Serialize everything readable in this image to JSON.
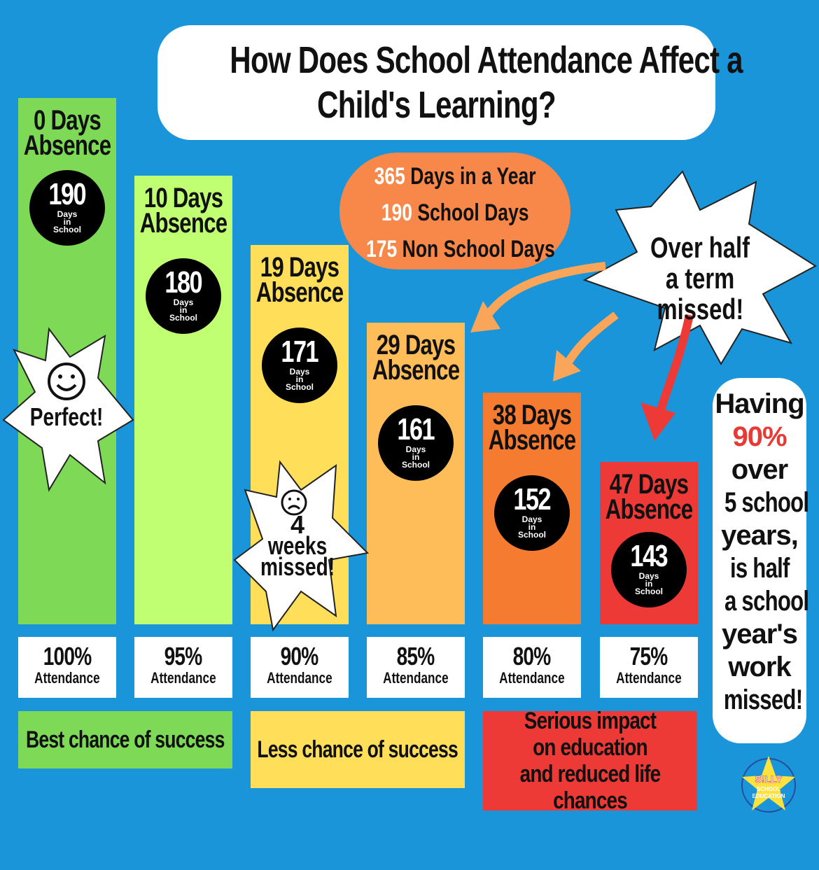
{
  "title": [
    "How Does School Attendance Affect a",
    "Child's Learning?"
  ],
  "year_info": [
    {
      "num": "365",
      "text": "Days in a Year"
    },
    {
      "num": "190",
      "text": "School Days"
    },
    {
      "num": "175",
      "text": "Non School Days"
    }
  ],
  "callouts": {
    "perfect": "Perfect!",
    "weeks": [
      "4",
      "weeks",
      "missed!"
    ],
    "half_term": [
      "Over half",
      "a term",
      "missed!"
    ]
  },
  "circle_sub": [
    "Days",
    "in",
    "School"
  ],
  "attendance_label": "Attendance",
  "side_note": [
    "Having",
    "90%",
    "over",
    "5 school",
    "years,",
    "is half",
    "a school",
    "year's",
    "work",
    "missed!"
  ],
  "outcomes": [
    {
      "text": "Best chance of success",
      "color": "#7ed957"
    },
    {
      "text": "Less chance of success",
      "color": "#ffde59"
    },
    {
      "text": "Serious impact on education and reduced life chances",
      "color": "#ee3a36"
    }
  ],
  "logo": "Silly School Education",
  "colors": {
    "background": "#1a95d9",
    "bars": [
      "#7ed957",
      "#c1ff72",
      "#ffde59",
      "#ffbd59",
      "#f47b30",
      "#ee3a36"
    ]
  },
  "chart_data": {
    "type": "bar",
    "categories": [
      "100% Attendance",
      "95% Attendance",
      "90% Attendance",
      "85% Attendance",
      "80% Attendance",
      "75% Attendance"
    ],
    "series": [
      {
        "name": "Days Absence",
        "values": [
          0,
          10,
          19,
          29,
          38,
          47
        ]
      },
      {
        "name": "Days in School",
        "values": [
          190,
          180,
          171,
          161,
          152,
          143
        ]
      }
    ],
    "attendance": [
      "100%",
      "95%",
      "90%",
      "85%",
      "80%",
      "75%"
    ],
    "absence_labels": [
      "0 Days Absence",
      "10 Days Absence",
      "19 Days Absence",
      "29 Days Absence",
      "38 Days Absence",
      "47 Days Absence"
    ]
  }
}
